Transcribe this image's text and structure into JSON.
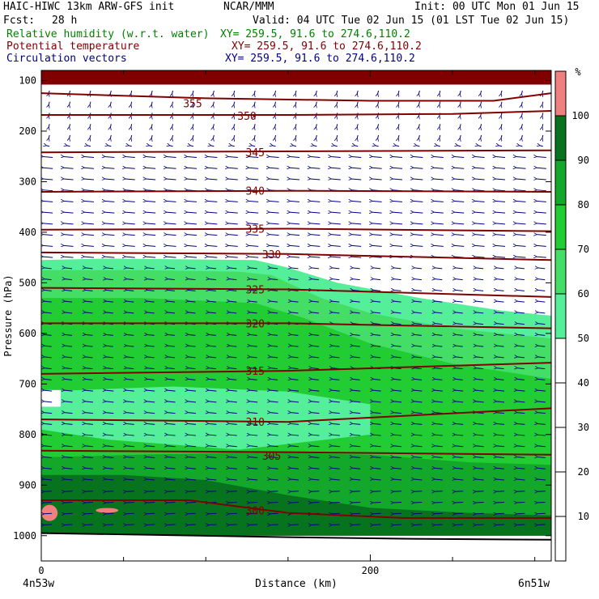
{
  "header": {
    "title": "HAIC-HIWC 13km ARW-GFS init",
    "org": "NCAR/MMM",
    "init": "Init: 00 UTC Mon 01 Jun 15",
    "fcst_label": "Fcst:",
    "fcst_value": "28 h",
    "valid": "Valid: 04 UTC Tue 02 Jun 15 (01 LST Tue 02 Jun 15)",
    "rh_label": "Relative humidity (w.r.t. water)",
    "rh_xy": "XY= 259.5, 91.6 to 274.6,110.2",
    "pt_label": "Potential temperature",
    "pt_xy": "XY= 259.5, 91.6 to 274.6,110.2",
    "cv_label": "Circulation vectors",
    "cv_xy": "XY= 259.5, 91.6 to 274.6,110.2"
  },
  "colors": {
    "rh_text": "#008000",
    "pt_text": "#800000",
    "cv_text": "#000080",
    "theta_line": "#800000",
    "vector": "#000080",
    "top_band": "#800000"
  },
  "chart_data": {
    "type": "contour-cross-section",
    "ylabel": "Pressure (hPa)",
    "xlabel": "Distance (km)",
    "x_ticks": [
      0,
      200
    ],
    "x_range_km": [
      0,
      310
    ],
    "left_endpoint": "4n53w",
    "right_endpoint": "6n51w",
    "y_ticks": [
      100,
      200,
      300,
      400,
      500,
      600,
      700,
      800,
      900,
      1000
    ],
    "y_range_hPa": [
      80,
      1050
    ],
    "colorbar": {
      "unit": "%",
      "tick_labels": [
        10,
        20,
        30,
        40,
        50,
        60,
        70,
        80,
        90,
        100
      ],
      "levels": [
        {
          "from": 0,
          "to": 50,
          "color": "#ffffff"
        },
        {
          "from": 50,
          "to": 60,
          "color": "#55ee99"
        },
        {
          "from": 60,
          "to": 70,
          "color": "#44dd66"
        },
        {
          "from": 70,
          "to": 80,
          "color": "#22cc33"
        },
        {
          "from": 80,
          "to": 90,
          "color": "#13a82a"
        },
        {
          "from": 90,
          "to": 100,
          "color": "#08731f"
        },
        {
          "from": 100,
          "to": 110,
          "color": "#f08080"
        }
      ]
    },
    "rh_regions": [
      {
        "level": 50,
        "top": [
          [
            0,
            455
          ],
          [
            40,
            452
          ],
          [
            130,
            455
          ],
          [
            150,
            470
          ],
          [
            180,
            500
          ],
          [
            230,
            530
          ],
          [
            280,
            555
          ],
          [
            310,
            565
          ]
        ],
        "bottom_hPa": 1000
      },
      {
        "level": 60,
        "top": [
          [
            0,
            475
          ],
          [
            60,
            475
          ],
          [
            120,
            478
          ],
          [
            140,
            485
          ],
          [
            170,
            530
          ],
          [
            200,
            560
          ],
          [
            250,
            590
          ],
          [
            310,
            610
          ]
        ],
        "bottom_hPa": 1000
      },
      {
        "level": 70,
        "top": [
          [
            0,
            530
          ],
          [
            60,
            530
          ],
          [
            130,
            540
          ],
          [
            160,
            570
          ],
          [
            200,
            620
          ],
          [
            250,
            660
          ],
          [
            310,
            690
          ]
        ],
        "bottom_hPa": 1000
      },
      {
        "level": 50,
        "top": [
          [
            0,
            715
          ],
          [
            80,
            705
          ],
          [
            150,
            715
          ],
          [
            200,
            740
          ],
          [
            200,
            800
          ],
          [
            120,
            830
          ],
          [
            40,
            810
          ],
          [
            0,
            790
          ]
        ],
        "closed": true
      },
      {
        "level": 80,
        "top": [
          [
            0,
            845
          ],
          [
            60,
            840
          ],
          [
            130,
            835
          ],
          [
            200,
            840
          ],
          [
            260,
            855
          ],
          [
            310,
            860
          ]
        ],
        "bottom_hPa": 1000
      },
      {
        "level": 90,
        "top": [
          [
            0,
            880
          ],
          [
            50,
            880
          ],
          [
            100,
            890
          ],
          [
            150,
            920
          ],
          [
            200,
            945
          ],
          [
            260,
            955
          ],
          [
            310,
            960
          ]
        ],
        "bottom_hPa": 1000
      }
    ],
    "theta_contours": [
      {
        "level": 355,
        "points": [
          [
            0,
            125
          ],
          [
            100,
            135
          ],
          [
            200,
            140
          ],
          [
            275,
            140
          ],
          [
            310,
            125
          ]
        ],
        "label_at": [
          92,
          145
        ]
      },
      {
        "level": 350,
        "points": [
          [
            0,
            168
          ],
          [
            150,
            168
          ],
          [
            250,
            166
          ],
          [
            310,
            160
          ]
        ],
        "label_at": [
          125,
          170
        ]
      },
      {
        "level": 345,
        "points": [
          [
            0,
            242
          ],
          [
            310,
            238
          ]
        ],
        "label_at": [
          130,
          242
        ]
      },
      {
        "level": 340,
        "points": [
          [
            0,
            320
          ],
          [
            150,
            318
          ],
          [
            310,
            320
          ]
        ],
        "label_at": [
          130,
          318
        ]
      },
      {
        "level": 335,
        "points": [
          [
            0,
            395
          ],
          [
            150,
            393
          ],
          [
            310,
            398
          ]
        ],
        "label_at": [
          130,
          393
        ]
      },
      {
        "level": 330,
        "points": [
          [
            0,
            440
          ],
          [
            150,
            443
          ],
          [
            310,
            455
          ]
        ],
        "label_at": [
          140,
          443
        ]
      },
      {
        "level": 325,
        "points": [
          [
            0,
            510
          ],
          [
            150,
            513
          ],
          [
            310,
            528
          ]
        ],
        "label_at": [
          130,
          513
        ]
      },
      {
        "level": 320,
        "points": [
          [
            0,
            580
          ],
          [
            150,
            580
          ],
          [
            310,
            590
          ]
        ],
        "label_at": [
          130,
          580
        ]
      },
      {
        "level": 315,
        "points": [
          [
            0,
            680
          ],
          [
            150,
            674
          ],
          [
            310,
            658
          ]
        ],
        "label_at": [
          130,
          674
        ]
      },
      {
        "level": 310,
        "points": [
          [
            0,
            770
          ],
          [
            150,
            775
          ],
          [
            310,
            748
          ]
        ],
        "label_at": [
          130,
          775
        ]
      },
      {
        "level": 305,
        "points": [
          [
            0,
            832
          ],
          [
            150,
            835
          ],
          [
            310,
            840
          ]
        ],
        "label_at": [
          140,
          842
        ]
      },
      {
        "level": 300,
        "points": [
          [
            0,
            930
          ],
          [
            90,
            930
          ],
          [
            150,
            955
          ],
          [
            220,
            965
          ],
          [
            310,
            965
          ]
        ],
        "label_at": [
          130,
          950
        ]
      }
    ]
  }
}
